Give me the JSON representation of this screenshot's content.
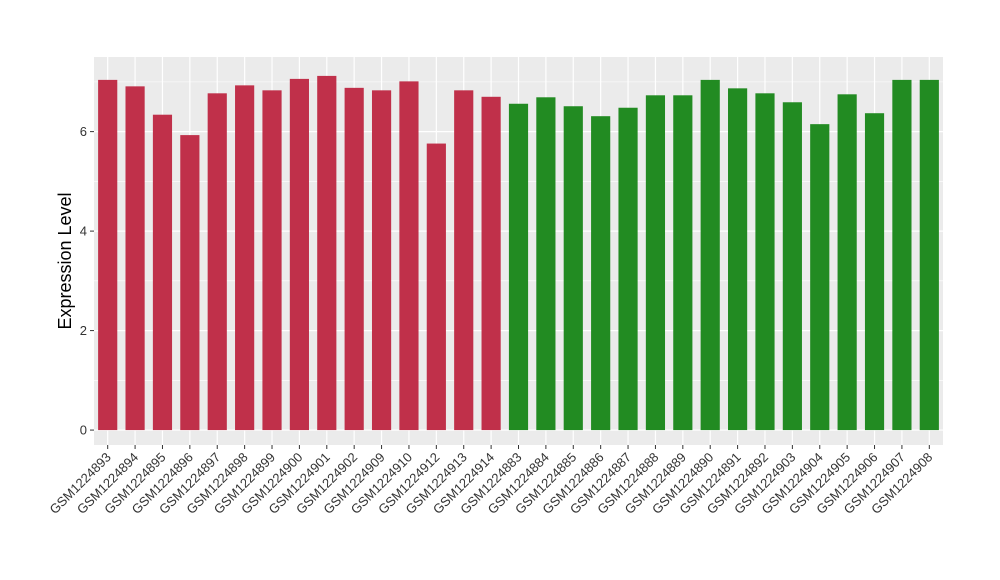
{
  "chart_data": {
    "type": "bar",
    "title": "",
    "xlabel": "",
    "ylabel": "Expression Level",
    "ylim": [
      -0.3,
      7.5
    ],
    "yticks": [
      0,
      2,
      4,
      6
    ],
    "grid": true,
    "legend": "none",
    "colors": {
      "panel_bg": "#ebebeb",
      "grid": "#ffffff",
      "group_a": "#c0304a",
      "group_b": "#228b22"
    },
    "categories": [
      "GSM1224893",
      "GSM1224894",
      "GSM1224895",
      "GSM1224896",
      "GSM1224897",
      "GSM1224898",
      "GSM1224899",
      "GSM1224900",
      "GSM1224901",
      "GSM1224902",
      "GSM1224909",
      "GSM1224910",
      "GSM1224912",
      "GSM1224913",
      "GSM1224914",
      "GSM1224883",
      "GSM1224884",
      "GSM1224885",
      "GSM1224886",
      "GSM1224887",
      "GSM1224888",
      "GSM1224889",
      "GSM1224890",
      "GSM1224891",
      "GSM1224892",
      "GSM1224903",
      "GSM1224904",
      "GSM1224905",
      "GSM1224906",
      "GSM1224907",
      "GSM1224908"
    ],
    "values": [
      7.04,
      6.91,
      6.34,
      5.93,
      6.77,
      6.93,
      6.83,
      7.06,
      7.12,
      6.88,
      6.83,
      7.01,
      5.76,
      6.83,
      6.7,
      6.56,
      6.69,
      6.51,
      6.31,
      6.48,
      6.73,
      6.73,
      7.04,
      6.87,
      6.77,
      6.59,
      6.15,
      6.75,
      6.37,
      7.04,
      7.04
    ],
    "groups": [
      "a",
      "a",
      "a",
      "a",
      "a",
      "a",
      "a",
      "a",
      "a",
      "a",
      "a",
      "a",
      "a",
      "a",
      "a",
      "b",
      "b",
      "b",
      "b",
      "b",
      "b",
      "b",
      "b",
      "b",
      "b",
      "b",
      "b",
      "b",
      "b",
      "b",
      "b"
    ]
  }
}
